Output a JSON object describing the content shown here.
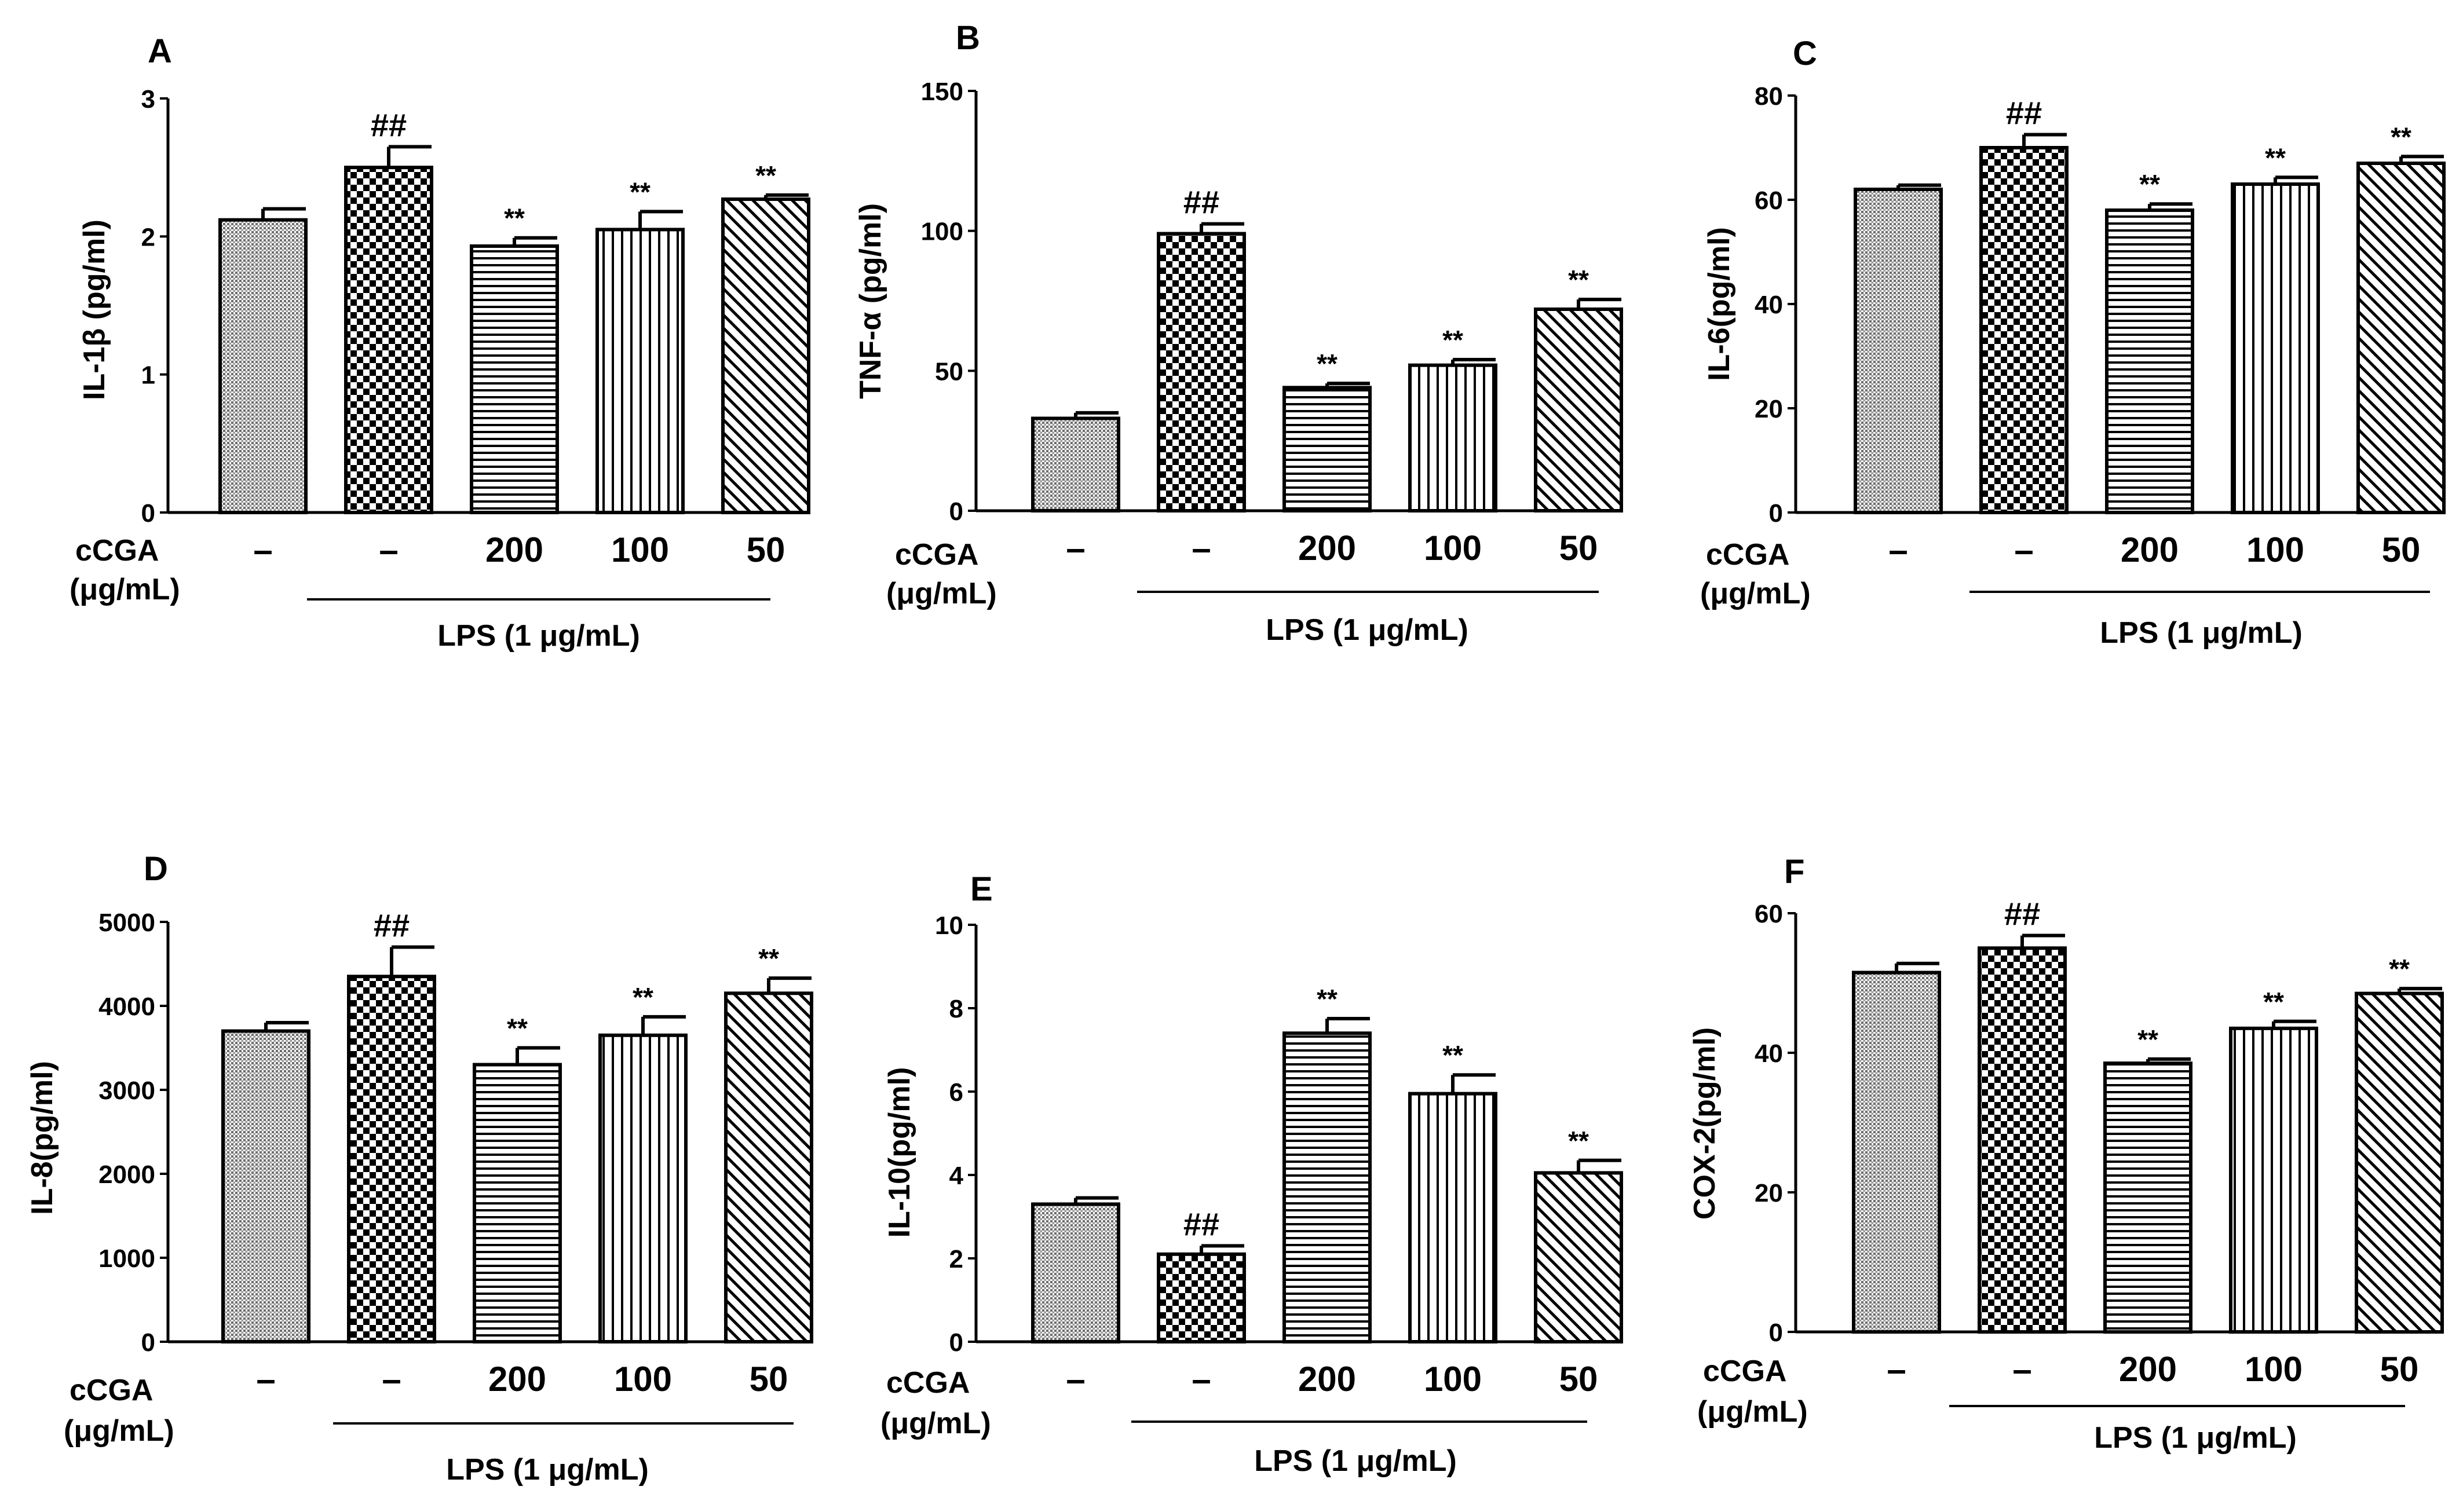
{
  "chart_data": [
    {
      "id": "A",
      "panel_label": "A",
      "type": "bar",
      "ylabel": "IL-1β (pg/ml)",
      "ylim": [
        0,
        3
      ],
      "yticks": [
        "0",
        "1",
        "2",
        "3"
      ],
      "row_label_1": "cCGA",
      "row_label_2": "(μg/mL)",
      "categories": [
        "–",
        "–",
        "200",
        "100",
        "50"
      ],
      "values": [
        2.12,
        2.5,
        1.93,
        2.05,
        2.27
      ],
      "errors": [
        0.08,
        0.15,
        0.06,
        0.13,
        0.03
      ],
      "annotations": [
        "",
        "##",
        "**",
        "**",
        "**"
      ],
      "lps_label": "LPS (1 μg/mL)"
    },
    {
      "id": "B",
      "panel_label": "B",
      "type": "bar",
      "ylabel": "TNF-α (pg/ml)",
      "ylim": [
        0,
        150
      ],
      "yticks": [
        "0",
        "50",
        "100",
        "150"
      ],
      "row_label_1": "cCGA",
      "row_label_2": "(μg/mL)",
      "categories": [
        "–",
        "–",
        "200",
        "100",
        "50"
      ],
      "values": [
        33,
        99,
        44,
        52,
        72
      ],
      "errors": [
        2,
        3.5,
        1.5,
        2,
        3.5
      ],
      "annotations": [
        "",
        "##",
        "**",
        "**",
        "**"
      ],
      "lps_label": "LPS (1 μg/mL)"
    },
    {
      "id": "C",
      "panel_label": "C",
      "type": "bar",
      "ylabel": "IL-6(pg/ml)",
      "ylim": [
        0,
        80
      ],
      "yticks": [
        "0",
        "20",
        "40",
        "60",
        "80"
      ],
      "row_label_1": "cCGA",
      "row_label_2": "(μg/mL)",
      "categories": [
        "–",
        "–",
        "200",
        "100",
        "50"
      ],
      "values": [
        62,
        70,
        58,
        63,
        67
      ],
      "errors": [
        0.8,
        2.5,
        1.2,
        1.3,
        1.3
      ],
      "annotations": [
        "",
        "##",
        "**",
        "**",
        "**"
      ],
      "lps_label": "LPS (1 μg/mL)"
    },
    {
      "id": "D",
      "panel_label": "D",
      "type": "bar",
      "ylabel": "IL-8(pg/ml)",
      "ylim": [
        0,
        5000
      ],
      "yticks": [
        "0",
        "1000",
        "2000",
        "3000",
        "4000",
        "5000"
      ],
      "row_label_1": "cCGA",
      "row_label_2": "(μg/mL)",
      "categories": [
        "–",
        "–",
        "200",
        "100",
        "50"
      ],
      "values": [
        3700,
        4350,
        3300,
        3650,
        4150
      ],
      "errors": [
        100,
        350,
        200,
        220,
        180
      ],
      "annotations": [
        "",
        "##",
        "**",
        "**",
        "**"
      ],
      "lps_label": "LPS (1 μg/mL)"
    },
    {
      "id": "E",
      "panel_label": "E",
      "type": "bar",
      "ylabel": "IL-10(pg/ml)",
      "ylim": [
        0,
        10
      ],
      "yticks": [
        "0",
        "2",
        "4",
        "6",
        "8",
        "10"
      ],
      "row_label_1": "cCGA",
      "row_label_2": "(μg/mL)",
      "categories": [
        "–",
        "–",
        "200",
        "100",
        "50"
      ],
      "values": [
        3.3,
        2.1,
        7.4,
        5.95,
        4.05
      ],
      "errors": [
        0.15,
        0.2,
        0.35,
        0.45,
        0.3
      ],
      "annotations": [
        "",
        "##",
        "**",
        "**",
        "**"
      ],
      "lps_label": "LPS (1 μg/mL)"
    },
    {
      "id": "F",
      "panel_label": "F",
      "type": "bar",
      "ylabel": "COX-2(pg/ml)",
      "ylim": [
        0,
        60
      ],
      "yticks": [
        "0",
        "20",
        "40",
        "60"
      ],
      "row_label_1": "cCGA",
      "row_label_2": "(μg/mL)",
      "categories": [
        "–",
        "–",
        "200",
        "100",
        "50"
      ],
      "values": [
        51.5,
        55,
        38.5,
        43.5,
        48.5
      ],
      "errors": [
        1.3,
        1.8,
        0.6,
        1,
        0.7
      ],
      "annotations": [
        "",
        "##",
        "**",
        "**",
        "**"
      ],
      "lps_label": "LPS (1 μg/mL)"
    }
  ]
}
